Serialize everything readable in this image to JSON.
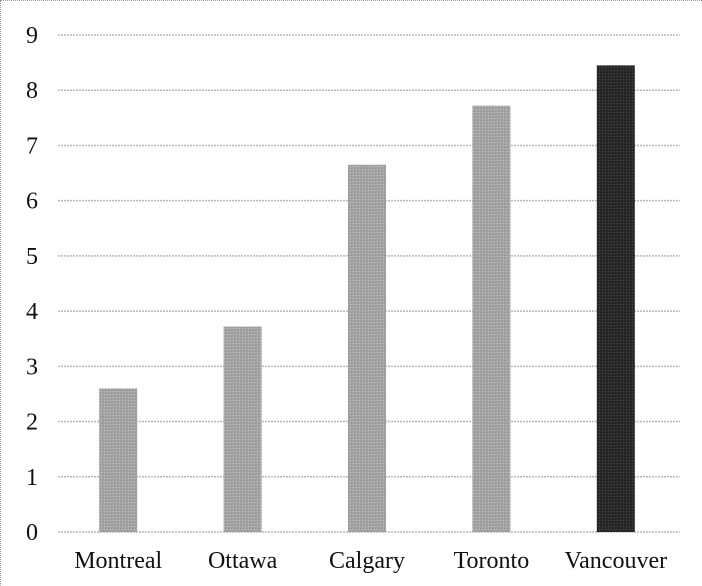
{
  "chart_data": {
    "type": "bar",
    "categories": [
      "Montreal",
      "Ottawa",
      "Calgary",
      "Toronto",
      "Vancouver"
    ],
    "values": [
      2.6,
      3.72,
      6.65,
      7.72,
      8.45
    ],
    "ylim": [
      0,
      9
    ],
    "yticks": [
      "0",
      "1",
      "2",
      "3",
      "4",
      "5",
      "6",
      "7",
      "8",
      "9"
    ],
    "grid": true,
    "title": "",
    "xlabel": "",
    "ylabel": "",
    "colors": {
      "default_bar": "#a6a6a6",
      "highlight_bar": "#2b2b2b",
      "grid": "#b8b8b8"
    },
    "highlight_index": 4
  }
}
